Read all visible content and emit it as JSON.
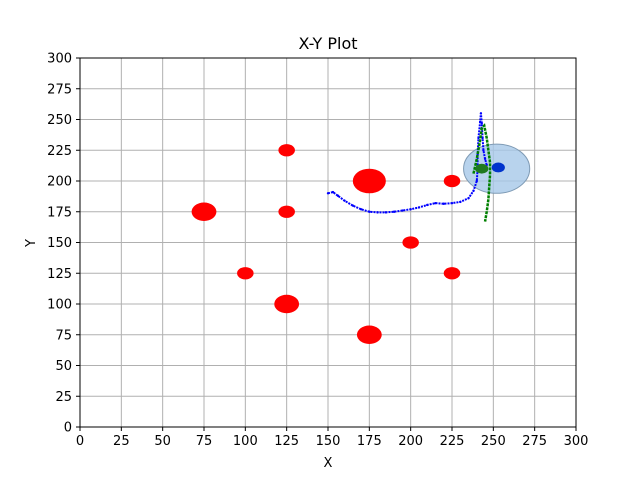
{
  "chart_data": {
    "type": "scatter",
    "title": "X-Y Plot",
    "xlabel": "X",
    "ylabel": "Y",
    "xlim": [
      0,
      300
    ],
    "ylim": [
      0,
      300
    ],
    "xticks": [
      0,
      25,
      50,
      75,
      100,
      125,
      150,
      175,
      200,
      225,
      250,
      275,
      300
    ],
    "yticks": [
      0,
      25,
      50,
      75,
      100,
      125,
      150,
      175,
      200,
      225,
      250,
      275,
      300
    ],
    "grid": true,
    "colors": {
      "obstacles": "#ff0000",
      "path": "#0000ff",
      "heading": "#008000",
      "robot": "#0033cc",
      "goal_region": "#a6c8e8",
      "goal_center": "#1f7a1f"
    },
    "obstacles": [
      {
        "x": 75,
        "y": 175,
        "r": 7.5
      },
      {
        "x": 125,
        "y": 225,
        "r": 5
      },
      {
        "x": 125,
        "y": 175,
        "r": 5
      },
      {
        "x": 100,
        "y": 125,
        "r": 5
      },
      {
        "x": 125,
        "y": 100,
        "r": 7.5
      },
      {
        "x": 175,
        "y": 200,
        "r": 10
      },
      {
        "x": 175,
        "y": 75,
        "r": 7.5
      },
      {
        "x": 200,
        "y": 150,
        "r": 5
      },
      {
        "x": 225,
        "y": 200,
        "r": 5
      },
      {
        "x": 225,
        "y": 125,
        "r": 5
      }
    ],
    "goal_region": {
      "x": 252,
      "y": 210,
      "r": 20
    },
    "goal_center": {
      "x": 243,
      "y": 210,
      "r": 4
    },
    "robot": {
      "x": 253,
      "y": 211,
      "r": 4
    },
    "path": [
      [
        150,
        190
      ],
      [
        153,
        191
      ],
      [
        156,
        188
      ],
      [
        160,
        184
      ],
      [
        165,
        180
      ],
      [
        170,
        177
      ],
      [
        175,
        175
      ],
      [
        180,
        174.5
      ],
      [
        185,
        174.5
      ],
      [
        190,
        175
      ],
      [
        195,
        176
      ],
      [
        200,
        177
      ],
      [
        205,
        178.5
      ],
      [
        210,
        180.5
      ],
      [
        215,
        182
      ],
      [
        220,
        181.5
      ],
      [
        225,
        182
      ],
      [
        230,
        183
      ],
      [
        235,
        186
      ],
      [
        238,
        192
      ],
      [
        240,
        200
      ],
      [
        240.5,
        210
      ],
      [
        240.5,
        222
      ],
      [
        241,
        235
      ],
      [
        242,
        248
      ],
      [
        242.5,
        255
      ],
      [
        243,
        247
      ],
      [
        243.5,
        235
      ],
      [
        244,
        225
      ],
      [
        245,
        218
      ],
      [
        246,
        213
      ]
    ],
    "heading": [
      [
        238,
        206
      ],
      [
        240,
        218
      ],
      [
        242,
        233
      ],
      [
        243,
        243
      ],
      [
        244.5,
        245
      ],
      [
        246,
        235
      ],
      [
        247,
        225
      ],
      [
        248,
        215
      ],
      [
        248,
        205
      ],
      [
        247.5,
        195
      ],
      [
        247,
        185
      ],
      [
        246,
        175
      ],
      [
        245,
        167
      ]
    ]
  }
}
